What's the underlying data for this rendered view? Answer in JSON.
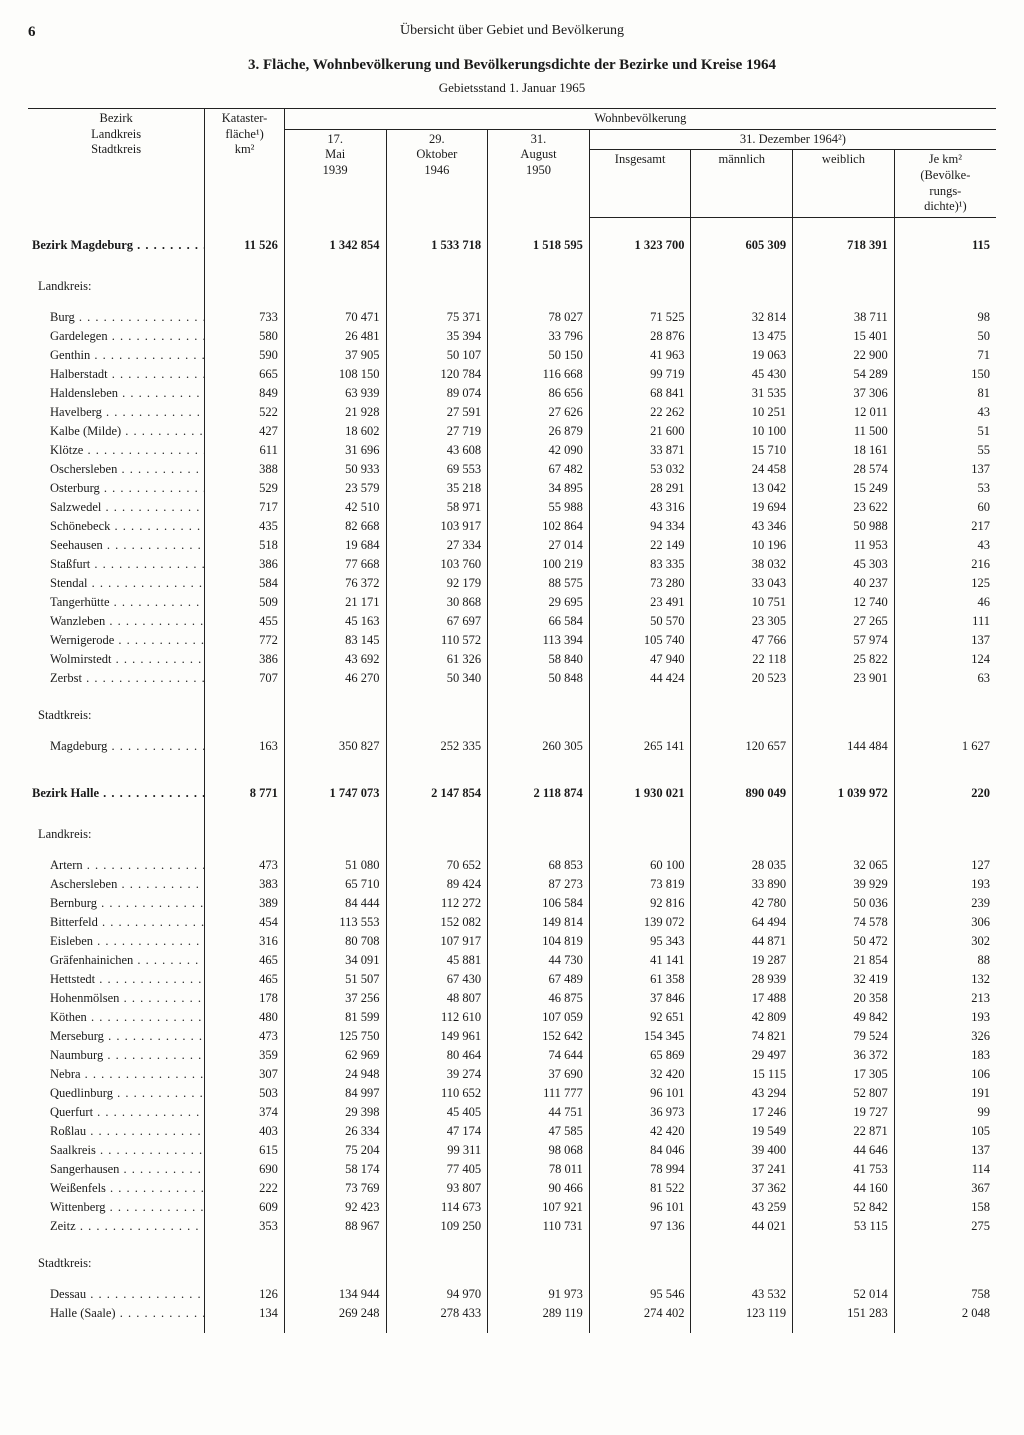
{
  "page_number": "6",
  "running_head": "Übersicht über Gebiet und Bevölkerung",
  "title": "3. Fläche, Wohnbevölkerung und Bevölkerungsdichte der Bezirke und Kreise 1964",
  "substand": "Gebietsstand 1. Januar 1965",
  "columns": {
    "group_label": "Bezirk\nLandkreis\nStadtkreis",
    "area": "Kataster-\nfläche¹)\nkm²",
    "pop_header": "Wohnbevölkerung",
    "d1": "17.\nMai\n1939",
    "d2": "29.\nOktober\n1946",
    "d3": "31.\nAugust\n1950",
    "dec_header": "31. Dezember 1964²)",
    "total": "Insgesamt",
    "male": "männlich",
    "female": "weiblich",
    "density": "Je km²\n(Bevölke-\nrungs-\ndichte)¹)"
  },
  "labels": {
    "landkreis": "Landkreis:",
    "stadtkreis": "Stadtkreis:"
  },
  "sections": [
    {
      "name": "Bezirk Magdeburg",
      "totals": [
        "11 526",
        "1 342 854",
        "1 533 718",
        "1 518 595",
        "1 323 700",
        "605 309",
        "718 391",
        "115"
      ],
      "landkreise": [
        {
          "n": "Burg",
          "v": [
            "733",
            "70 471",
            "75 371",
            "78 027",
            "71 525",
            "32 814",
            "38 711",
            "98"
          ]
        },
        {
          "n": "Gardelegen",
          "v": [
            "580",
            "26 481",
            "35 394",
            "33 796",
            "28 876",
            "13 475",
            "15 401",
            "50"
          ]
        },
        {
          "n": "Genthin",
          "v": [
            "590",
            "37 905",
            "50 107",
            "50 150",
            "41 963",
            "19 063",
            "22 900",
            "71"
          ]
        },
        {
          "n": "Halberstadt",
          "v": [
            "665",
            "108 150",
            "120 784",
            "116 668",
            "99 719",
            "45 430",
            "54 289",
            "150"
          ]
        },
        {
          "n": "Haldensleben",
          "v": [
            "849",
            "63 939",
            "89 074",
            "86 656",
            "68 841",
            "31 535",
            "37 306",
            "81"
          ]
        },
        {
          "n": "Havelberg",
          "v": [
            "522",
            "21 928",
            "27 591",
            "27 626",
            "22 262",
            "10 251",
            "12 011",
            "43"
          ]
        },
        {
          "n": "Kalbe (Milde)",
          "v": [
            "427",
            "18 602",
            "27 719",
            "26 879",
            "21 600",
            "10 100",
            "11 500",
            "51"
          ]
        },
        {
          "n": "Klötze",
          "v": [
            "611",
            "31 696",
            "43 608",
            "42 090",
            "33 871",
            "15 710",
            "18 161",
            "55"
          ]
        },
        {
          "n": "Oschersleben",
          "v": [
            "388",
            "50 933",
            "69 553",
            "67 482",
            "53 032",
            "24 458",
            "28 574",
            "137"
          ]
        },
        {
          "n": "Osterburg",
          "v": [
            "529",
            "23 579",
            "35 218",
            "34 895",
            "28 291",
            "13 042",
            "15 249",
            "53"
          ]
        },
        {
          "n": "Salzwedel",
          "v": [
            "717",
            "42 510",
            "58 971",
            "55 988",
            "43 316",
            "19 694",
            "23 622",
            "60"
          ]
        },
        {
          "n": "Schönebeck",
          "v": [
            "435",
            "82 668",
            "103 917",
            "102 864",
            "94 334",
            "43 346",
            "50 988",
            "217"
          ]
        },
        {
          "n": "Seehausen",
          "v": [
            "518",
            "19 684",
            "27 334",
            "27 014",
            "22 149",
            "10 196",
            "11 953",
            "43"
          ]
        },
        {
          "n": "Staßfurt",
          "v": [
            "386",
            "77 668",
            "103 760",
            "100 219",
            "83 335",
            "38 032",
            "45 303",
            "216"
          ]
        },
        {
          "n": "Stendal",
          "v": [
            "584",
            "76 372",
            "92 179",
            "88 575",
            "73 280",
            "33 043",
            "40 237",
            "125"
          ]
        },
        {
          "n": "Tangerhütte",
          "v": [
            "509",
            "21 171",
            "30 868",
            "29 695",
            "23 491",
            "10 751",
            "12 740",
            "46"
          ]
        },
        {
          "n": "Wanzleben",
          "v": [
            "455",
            "45 163",
            "67 697",
            "66 584",
            "50 570",
            "23 305",
            "27 265",
            "111"
          ]
        },
        {
          "n": "Wernigerode",
          "v": [
            "772",
            "83 145",
            "110 572",
            "113 394",
            "105 740",
            "47 766",
            "57 974",
            "137"
          ]
        },
        {
          "n": "Wolmirstedt",
          "v": [
            "386",
            "43 692",
            "61 326",
            "58 840",
            "47 940",
            "22 118",
            "25 822",
            "124"
          ]
        },
        {
          "n": "Zerbst",
          "v": [
            "707",
            "46 270",
            "50 340",
            "50 848",
            "44 424",
            "20 523",
            "23 901",
            "63"
          ]
        }
      ],
      "stadtkreise": [
        {
          "n": "Magdeburg",
          "v": [
            "163",
            "350 827",
            "252 335",
            "260 305",
            "265 141",
            "120 657",
            "144 484",
            "1 627"
          ]
        }
      ]
    },
    {
      "name": "Bezirk Halle",
      "totals": [
        "8 771",
        "1 747 073",
        "2 147 854",
        "2 118 874",
        "1 930 021",
        "890 049",
        "1 039 972",
        "220"
      ],
      "landkreise": [
        {
          "n": "Artern",
          "v": [
            "473",
            "51 080",
            "70 652",
            "68 853",
            "60 100",
            "28 035",
            "32 065",
            "127"
          ]
        },
        {
          "n": "Aschersleben",
          "v": [
            "383",
            "65 710",
            "89 424",
            "87 273",
            "73 819",
            "33 890",
            "39 929",
            "193"
          ]
        },
        {
          "n": "Bernburg",
          "v": [
            "389",
            "84 444",
            "112 272",
            "106 584",
            "92 816",
            "42 780",
            "50 036",
            "239"
          ]
        },
        {
          "n": "Bitterfeld",
          "v": [
            "454",
            "113 553",
            "152 082",
            "149 814",
            "139 072",
            "64 494",
            "74 578",
            "306"
          ]
        },
        {
          "n": "Eisleben",
          "v": [
            "316",
            "80 708",
            "107 917",
            "104 819",
            "95 343",
            "44 871",
            "50 472",
            "302"
          ]
        },
        {
          "n": "Gräfenhainichen",
          "v": [
            "465",
            "34 091",
            "45 881",
            "44 730",
            "41 141",
            "19 287",
            "21 854",
            "88"
          ]
        },
        {
          "n": "Hettstedt",
          "v": [
            "465",
            "51 507",
            "67 430",
            "67 489",
            "61 358",
            "28 939",
            "32 419",
            "132"
          ]
        },
        {
          "n": "Hohenmölsen",
          "v": [
            "178",
            "37 256",
            "48 807",
            "46 875",
            "37 846",
            "17 488",
            "20 358",
            "213"
          ]
        },
        {
          "n": "Köthen",
          "v": [
            "480",
            "81 599",
            "112 610",
            "107 059",
            "92 651",
            "42 809",
            "49 842",
            "193"
          ]
        },
        {
          "n": "Merseburg",
          "v": [
            "473",
            "125 750",
            "149 961",
            "152 642",
            "154 345",
            "74 821",
            "79 524",
            "326"
          ]
        },
        {
          "n": "Naumburg",
          "v": [
            "359",
            "62 969",
            "80 464",
            "74 644",
            "65 869",
            "29 497",
            "36 372",
            "183"
          ]
        },
        {
          "n": "Nebra",
          "v": [
            "307",
            "24 948",
            "39 274",
            "37 690",
            "32 420",
            "15 115",
            "17 305",
            "106"
          ]
        },
        {
          "n": "Quedlinburg",
          "v": [
            "503",
            "84 997",
            "110 652",
            "111 777",
            "96 101",
            "43 294",
            "52 807",
            "191"
          ]
        },
        {
          "n": "Querfurt",
          "v": [
            "374",
            "29 398",
            "45 405",
            "44 751",
            "36 973",
            "17 246",
            "19 727",
            "99"
          ]
        },
        {
          "n": "Roßlau",
          "v": [
            "403",
            "26 334",
            "47 174",
            "47 585",
            "42 420",
            "19 549",
            "22 871",
            "105"
          ]
        },
        {
          "n": "Saalkreis",
          "v": [
            "615",
            "75 204",
            "99 311",
            "98 068",
            "84 046",
            "39 400",
            "44 646",
            "137"
          ]
        },
        {
          "n": "Sangerhausen",
          "v": [
            "690",
            "58 174",
            "77 405",
            "78 011",
            "78 994",
            "37 241",
            "41 753",
            "114"
          ]
        },
        {
          "n": "Weißenfels",
          "v": [
            "222",
            "73 769",
            "93 807",
            "90 466",
            "81 522",
            "37 362",
            "44 160",
            "367"
          ]
        },
        {
          "n": "Wittenberg",
          "v": [
            "609",
            "92 423",
            "114 673",
            "107 921",
            "96 101",
            "43 259",
            "52 842",
            "158"
          ]
        },
        {
          "n": "Zeitz",
          "v": [
            "353",
            "88 967",
            "109 250",
            "110 731",
            "97 136",
            "44 021",
            "53 115",
            "275"
          ]
        }
      ],
      "stadtkreise": [
        {
          "n": "Dessau",
          "v": [
            "126",
            "134 944",
            "94 970",
            "91 973",
            "95 546",
            "43 532",
            "52 014",
            "758"
          ]
        },
        {
          "n": "Halle (Saale)",
          "v": [
            "134",
            "269 248",
            "278 433",
            "289 119",
            "274 402",
            "123 119",
            "151 283",
            "2 048"
          ]
        }
      ]
    }
  ]
}
